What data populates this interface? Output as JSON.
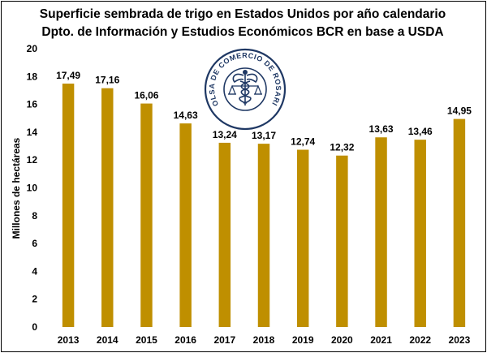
{
  "chart_data": {
    "type": "bar",
    "title": "Superficie sembrada de trigo en Estados Unidos por año calendario",
    "subtitle": "Dpto. de Información y Estudios Económicos BCR en base a USDA",
    "xlabel": "",
    "ylabel": "Millones de hectáreas",
    "categories": [
      "2013",
      "2014",
      "2015",
      "2016",
      "2017",
      "2018",
      "2019",
      "2020",
      "2021",
      "2022",
      "2023"
    ],
    "values": [
      17.49,
      17.16,
      16.06,
      14.63,
      13.24,
      13.17,
      12.74,
      12.32,
      13.63,
      13.46,
      14.95
    ],
    "value_labels": [
      "17,49",
      "17,16",
      "16,06",
      "14,63",
      "13,24",
      "13,17",
      "12,74",
      "12,32",
      "13,63",
      "13,46",
      "14,95"
    ],
    "ylim": [
      0,
      20
    ],
    "yticks": [
      "0",
      "2",
      "4",
      "6",
      "8",
      "10",
      "12",
      "14",
      "16",
      "18",
      "20"
    ],
    "grid": false,
    "bar_color": "#BF8F00",
    "legend": "none"
  },
  "logo": {
    "text": "BOLSA DE COMERCIO DE ROSARIO",
    "color": "#1F3864"
  }
}
